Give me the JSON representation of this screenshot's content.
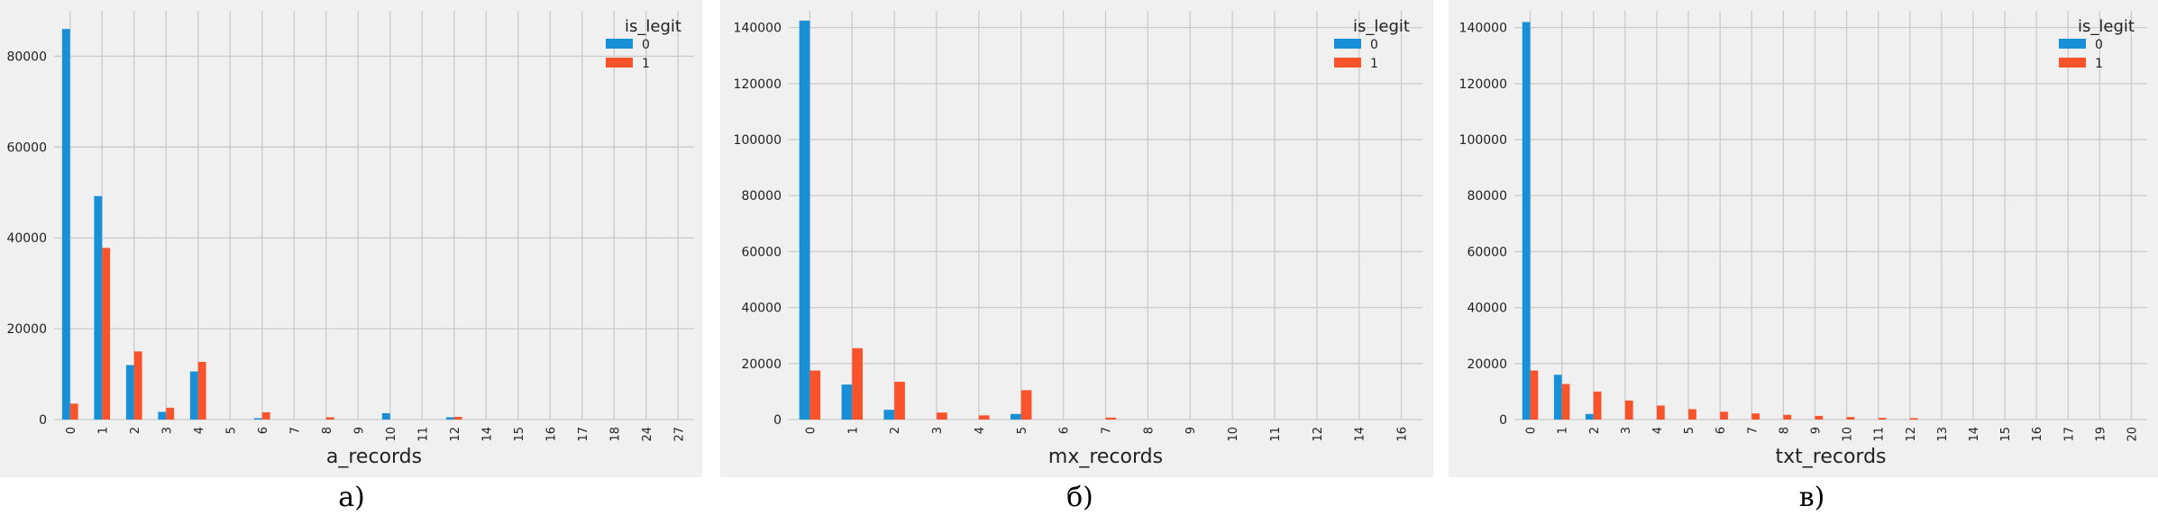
{
  "colors": {
    "legit_0": "#1890d8",
    "legit_1": "#f9532b",
    "panel_bg": "#f0f0f0",
    "grid": "#cbcbcb"
  },
  "chart_data": [
    {
      "type": "bar",
      "caption": "а)",
      "xlabel": "a_records",
      "ylabel": "",
      "legend_title": "is_legit",
      "legend_position": "top-right",
      "grid": true,
      "ylim": [
        0,
        90000
      ],
      "yticks": [
        0,
        20000,
        40000,
        60000,
        80000
      ],
      "categories": [
        "0",
        "1",
        "2",
        "3",
        "4",
        "5",
        "6",
        "7",
        "8",
        "9",
        "10",
        "11",
        "12",
        "14",
        "15",
        "16",
        "17",
        "18",
        "24",
        "27"
      ],
      "series": [
        {
          "name": "0",
          "color": "#1890d8",
          "values": [
            86000,
            49200,
            12000,
            1700,
            10600,
            0,
            300,
            0,
            0,
            0,
            1400,
            0,
            500,
            0,
            0,
            0,
            0,
            0,
            0,
            0
          ]
        },
        {
          "name": "1",
          "color": "#f9532b",
          "values": [
            3500,
            37800,
            15000,
            2600,
            12700,
            0,
            1600,
            0,
            500,
            0,
            0,
            0,
            600,
            0,
            0,
            0,
            0,
            0,
            0,
            0
          ]
        }
      ]
    },
    {
      "type": "bar",
      "caption": "б)",
      "xlabel": "mx_records",
      "ylabel": "",
      "legend_title": "is_legit",
      "legend_position": "top-right",
      "grid": true,
      "ylim": [
        0,
        146000
      ],
      "yticks": [
        0,
        20000,
        40000,
        60000,
        80000,
        100000,
        120000,
        140000
      ],
      "categories": [
        "0",
        "1",
        "2",
        "3",
        "4",
        "5",
        "6",
        "7",
        "8",
        "9",
        "10",
        "11",
        "12",
        "14",
        "16"
      ],
      "series": [
        {
          "name": "0",
          "color": "#1890d8",
          "values": [
            142500,
            12500,
            3500,
            0,
            0,
            2000,
            0,
            0,
            0,
            0,
            0,
            0,
            0,
            0,
            0
          ]
        },
        {
          "name": "1",
          "color": "#f9532b",
          "values": [
            17500,
            25500,
            13500,
            2500,
            1500,
            10500,
            0,
            700,
            0,
            0,
            0,
            0,
            0,
            0,
            0
          ]
        }
      ]
    },
    {
      "type": "bar",
      "caption": "в)",
      "xlabel": "txt_records",
      "ylabel": "",
      "legend_title": "is_legit",
      "legend_position": "top-right",
      "grid": true,
      "ylim": [
        0,
        146000
      ],
      "yticks": [
        0,
        20000,
        40000,
        60000,
        80000,
        100000,
        120000,
        140000
      ],
      "categories": [
        "0",
        "1",
        "2",
        "3",
        "4",
        "5",
        "6",
        "7",
        "8",
        "9",
        "10",
        "11",
        "12",
        "13",
        "14",
        "15",
        "16",
        "17",
        "19",
        "20"
      ],
      "series": [
        {
          "name": "0",
          "color": "#1890d8",
          "values": [
            142000,
            16000,
            2000,
            0,
            0,
            0,
            0,
            0,
            0,
            0,
            0,
            0,
            0,
            0,
            0,
            0,
            0,
            0,
            0,
            0
          ]
        },
        {
          "name": "1",
          "color": "#f9532b",
          "values": [
            17500,
            12700,
            10000,
            6800,
            5000,
            3700,
            2800,
            2200,
            1700,
            1300,
            900,
            600,
            500,
            0,
            0,
            0,
            0,
            0,
            0,
            0
          ]
        }
      ]
    }
  ]
}
